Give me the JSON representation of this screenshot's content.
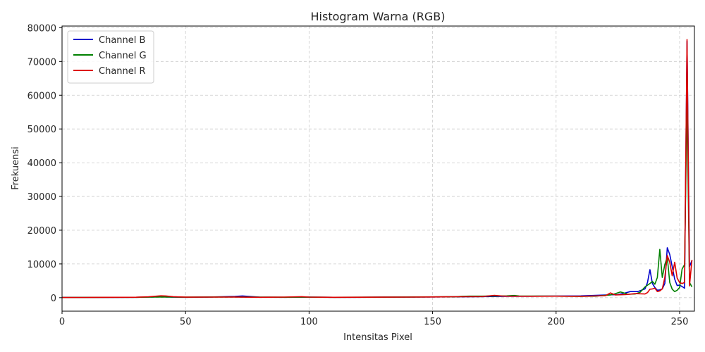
{
  "chart_data": {
    "type": "line",
    "title": "Histogram Warna (RGB)",
    "xlabel": "Intensitas Pixel",
    "ylabel": "Frekuensi",
    "xlim": [
      0,
      256
    ],
    "ylim": [
      -4000,
      80500
    ],
    "xticks": [
      0,
      50,
      100,
      150,
      200,
      250
    ],
    "yticks": [
      0,
      10000,
      20000,
      30000,
      40000,
      50000,
      60000,
      70000,
      80000
    ],
    "grid": true,
    "legend_position": "top-left",
    "series": [
      {
        "name": "Channel B",
        "color": "#0000cc",
        "points": [
          [
            0,
            80
          ],
          [
            10,
            60
          ],
          [
            20,
            90
          ],
          [
            30,
            110
          ],
          [
            35,
            200
          ],
          [
            40,
            260
          ],
          [
            45,
            150
          ],
          [
            50,
            120
          ],
          [
            60,
            200
          ],
          [
            70,
            380
          ],
          [
            73,
            500
          ],
          [
            80,
            150
          ],
          [
            90,
            100
          ],
          [
            100,
            150
          ],
          [
            110,
            100
          ],
          [
            120,
            120
          ],
          [
            130,
            150
          ],
          [
            140,
            180
          ],
          [
            150,
            220
          ],
          [
            160,
            260
          ],
          [
            170,
            320
          ],
          [
            180,
            380
          ],
          [
            190,
            420
          ],
          [
            200,
            480
          ],
          [
            210,
            520
          ],
          [
            216,
            700
          ],
          [
            220,
            800
          ],
          [
            225,
            900
          ],
          [
            228,
            1400
          ],
          [
            230,
            1800
          ],
          [
            233,
            1800
          ],
          [
            236,
            2600
          ],
          [
            237,
            4500
          ],
          [
            238,
            8300
          ],
          [
            239,
            4200
          ],
          [
            240,
            3000
          ],
          [
            241,
            2200
          ],
          [
            242,
            2300
          ],
          [
            243,
            2600
          ],
          [
            244,
            4200
          ],
          [
            245,
            14800
          ],
          [
            246,
            12800
          ],
          [
            247,
            9200
          ],
          [
            248,
            5500
          ],
          [
            249,
            3600
          ],
          [
            250,
            3700
          ],
          [
            251,
            3300
          ],
          [
            252,
            2800
          ],
          [
            253,
            76000
          ],
          [
            254,
            9200
          ],
          [
            255,
            11000
          ]
        ]
      },
      {
        "name": "Channel G",
        "color": "#008000",
        "points": [
          [
            0,
            60
          ],
          [
            10,
            80
          ],
          [
            20,
            100
          ],
          [
            30,
            120
          ],
          [
            35,
            150
          ],
          [
            40,
            220
          ],
          [
            45,
            180
          ],
          [
            50,
            150
          ],
          [
            60,
            200
          ],
          [
            70,
            220
          ],
          [
            80,
            180
          ],
          [
            90,
            130
          ],
          [
            100,
            160
          ],
          [
            110,
            120
          ],
          [
            120,
            130
          ],
          [
            130,
            160
          ],
          [
            140,
            190
          ],
          [
            150,
            230
          ],
          [
            160,
            300
          ],
          [
            162,
            400
          ],
          [
            165,
            450
          ],
          [
            170,
            450
          ],
          [
            175,
            500
          ],
          [
            180,
            520
          ],
          [
            183,
            650
          ],
          [
            185,
            500
          ],
          [
            190,
            480
          ],
          [
            200,
            450
          ],
          [
            210,
            400
          ],
          [
            216,
            450
          ],
          [
            220,
            700
          ],
          [
            222,
            800
          ],
          [
            224,
            1200
          ],
          [
            226,
            1700
          ],
          [
            227,
            1500
          ],
          [
            229,
            1000
          ],
          [
            232,
            1100
          ],
          [
            234,
            1600
          ],
          [
            236,
            3200
          ],
          [
            238,
            4200
          ],
          [
            239,
            4800
          ],
          [
            240,
            4000
          ],
          [
            241,
            6000
          ],
          [
            242,
            14300
          ],
          [
            243,
            6000
          ],
          [
            244,
            9800
          ],
          [
            245,
            12000
          ],
          [
            246,
            4500
          ],
          [
            247,
            2500
          ],
          [
            248,
            1800
          ],
          [
            249,
            2200
          ],
          [
            250,
            3000
          ],
          [
            251,
            8500
          ],
          [
            252,
            9800
          ],
          [
            253,
            58000
          ],
          [
            254,
            4500
          ],
          [
            255,
            3200
          ]
        ]
      },
      {
        "name": "Channel R",
        "color": "#dd0000",
        "points": [
          [
            0,
            50
          ],
          [
            10,
            60
          ],
          [
            20,
            100
          ],
          [
            30,
            130
          ],
          [
            35,
            250
          ],
          [
            40,
            550
          ],
          [
            42,
            500
          ],
          [
            45,
            300
          ],
          [
            50,
            150
          ],
          [
            60,
            180
          ],
          [
            70,
            200
          ],
          [
            80,
            100
          ],
          [
            90,
            180
          ],
          [
            97,
            300
          ],
          [
            100,
            180
          ],
          [
            110,
            120
          ],
          [
            120,
            140
          ],
          [
            130,
            160
          ],
          [
            140,
            180
          ],
          [
            150,
            220
          ],
          [
            160,
            280
          ],
          [
            170,
            320
          ],
          [
            175,
            700
          ],
          [
            178,
            500
          ],
          [
            180,
            450
          ],
          [
            190,
            420
          ],
          [
            200,
            450
          ],
          [
            210,
            400
          ],
          [
            220,
            600
          ],
          [
            222,
            1400
          ],
          [
            224,
            800
          ],
          [
            228,
            900
          ],
          [
            232,
            1200
          ],
          [
            236,
            1100
          ],
          [
            237,
            1500
          ],
          [
            238,
            2500
          ],
          [
            239,
            2600
          ],
          [
            240,
            2800
          ],
          [
            241,
            1800
          ],
          [
            242,
            2000
          ],
          [
            243,
            2600
          ],
          [
            244,
            6000
          ],
          [
            245,
            12500
          ],
          [
            246,
            10500
          ],
          [
            247,
            6500
          ],
          [
            248,
            10500
          ],
          [
            249,
            5800
          ],
          [
            250,
            4500
          ],
          [
            251,
            4200
          ],
          [
            252,
            4500
          ],
          [
            253,
            76500
          ],
          [
            254,
            3500
          ],
          [
            255,
            11200
          ]
        ]
      }
    ]
  }
}
